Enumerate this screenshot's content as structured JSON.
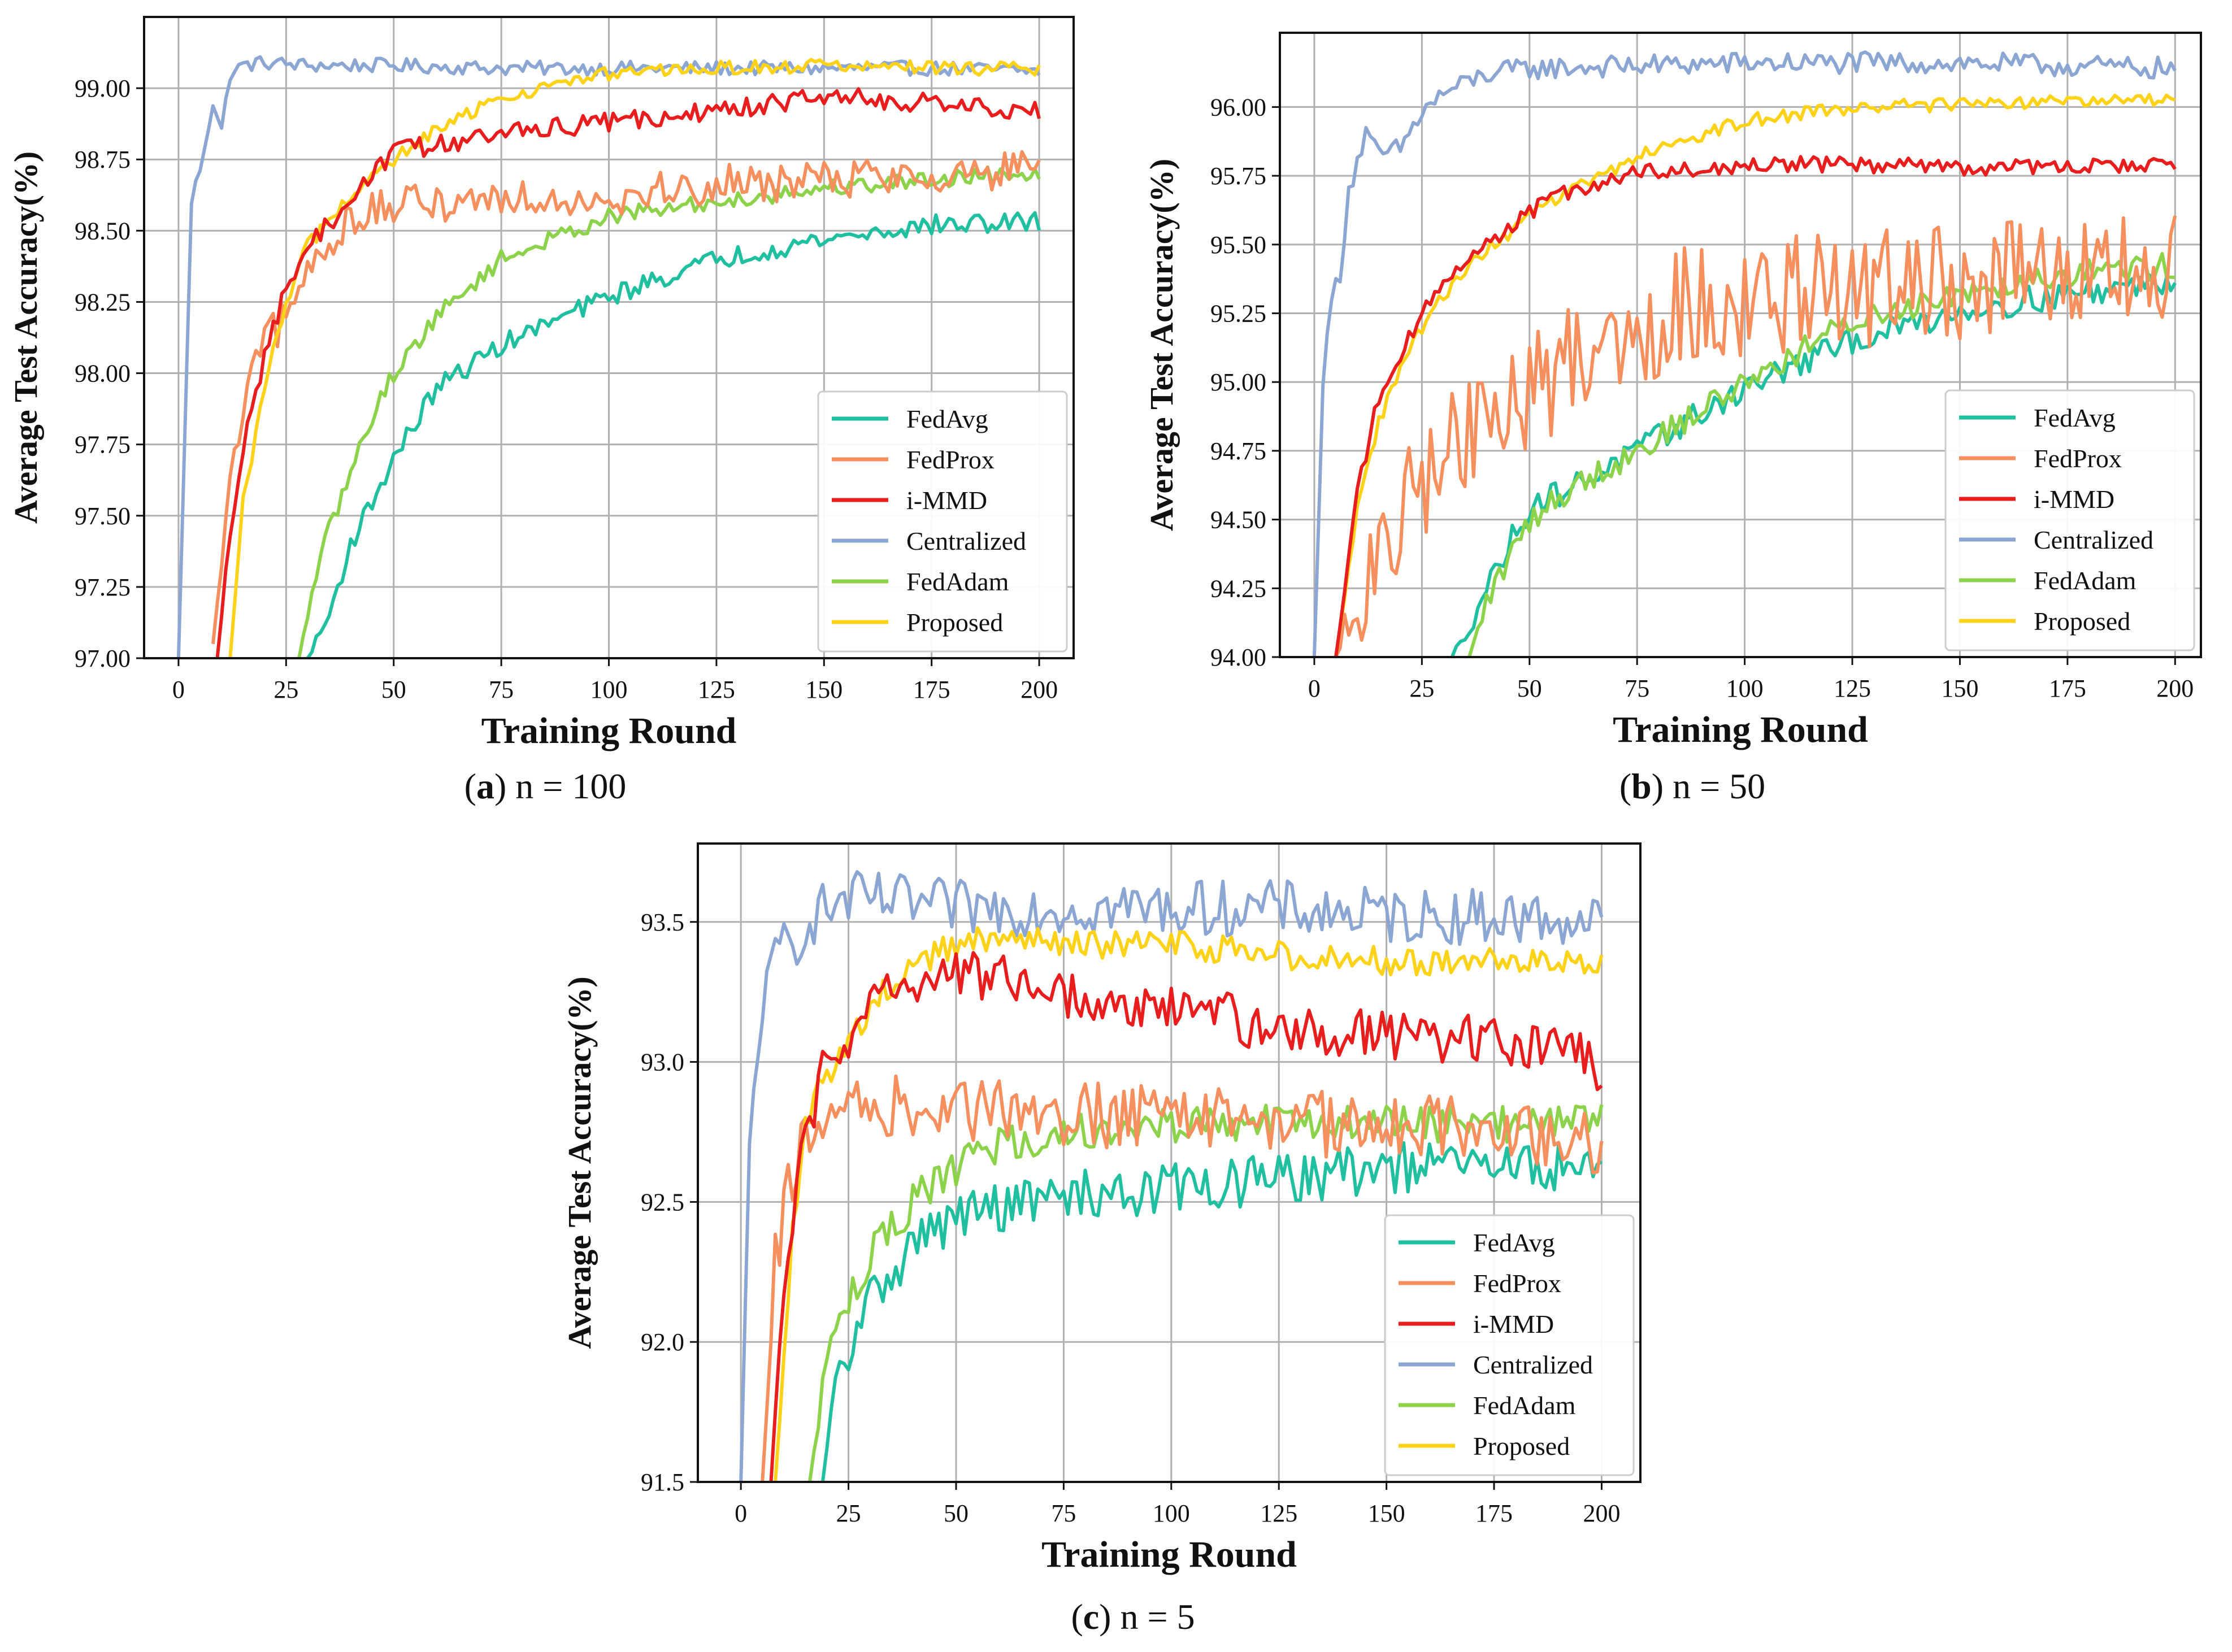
{
  "figure": {
    "panels": [
      {
        "label_letter": "a",
        "caption_rest": "n = 100"
      },
      {
        "label_letter": "b",
        "caption_rest": "n = 50"
      },
      {
        "label_letter": "c",
        "caption_rest": "n = 5"
      }
    ]
  },
  "colors": {
    "FedAvg": "#1fbf9f",
    "FedProx": "#f5905e",
    "i-MMD": "#e81d1d",
    "Centralized": "#8ca6d4",
    "FedAdam": "#8cd24a",
    "Proposed": "#ffd21a"
  },
  "chart_data": [
    {
      "type": "line",
      "id": "a",
      "title": "",
      "xlabel": "Training Round",
      "ylabel": "Average Test Accuracy(%)",
      "xlim": [
        -8,
        208
      ],
      "ylim": [
        97.0,
        99.25
      ],
      "xticks": [
        0,
        25,
        50,
        75,
        100,
        125,
        150,
        175,
        200
      ],
      "xtick_labels": [
        "0",
        "25",
        "50",
        "75",
        "100",
        "125",
        "150",
        "175",
        "200"
      ],
      "yticks": [
        97.0,
        97.25,
        97.5,
        97.75,
        98.0,
        98.25,
        98.5,
        98.75,
        99.0
      ],
      "ytick_labels": [
        "97.00",
        "97.25",
        "97.50",
        "97.75",
        "98.00",
        "98.25",
        "98.50",
        "98.75",
        "99.00"
      ],
      "grid": true,
      "legend": "lower-right",
      "series": [
        {
          "name": "FedAvg",
          "x": [
            30,
            35,
            40,
            50,
            60,
            75,
            100,
            125,
            150,
            175,
            200
          ],
          "y": [
            97.0,
            97.15,
            97.4,
            97.7,
            97.95,
            98.1,
            98.27,
            98.4,
            98.47,
            98.52,
            98.53
          ]
        },
        {
          "name": "FedProx",
          "x": [
            8,
            12,
            16,
            20,
            25,
            30,
            40,
            50,
            60,
            75,
            100,
            125,
            150,
            175,
            200
          ],
          "y": [
            97.05,
            97.6,
            97.95,
            98.1,
            98.2,
            98.35,
            98.55,
            98.58,
            98.6,
            98.62,
            98.62,
            98.66,
            98.68,
            98.7,
            98.71
          ]
        },
        {
          "name": "i-MMD",
          "x": [
            9,
            12,
            16,
            20,
            25,
            30,
            40,
            50,
            60,
            75,
            100,
            125,
            150,
            175,
            200
          ],
          "y": [
            97.0,
            97.45,
            97.85,
            98.05,
            98.3,
            98.45,
            98.6,
            98.78,
            98.8,
            98.84,
            98.88,
            98.92,
            98.97,
            98.95,
            98.92
          ]
        },
        {
          "name": "Centralized",
          "x": [
            0,
            3,
            5,
            8,
            10,
            12,
            15,
            20,
            30,
            50,
            75,
            100,
            125,
            150,
            175,
            200
          ],
          "y": [
            97.0,
            98.6,
            98.72,
            98.95,
            98.85,
            99.05,
            99.08,
            99.09,
            99.08,
            99.08,
            99.07,
            99.07,
            99.07,
            99.07,
            99.07,
            99.06
          ]
        },
        {
          "name": "FedAdam",
          "x": [
            28,
            32,
            35,
            40,
            45,
            50,
            60,
            75,
            100,
            125,
            150,
            175,
            200
          ],
          "y": [
            97.0,
            97.3,
            97.45,
            97.65,
            97.85,
            98.0,
            98.2,
            98.4,
            98.55,
            98.6,
            98.65,
            98.68,
            98.71
          ]
        },
        {
          "name": "Proposed",
          "x": [
            12,
            15,
            20,
            25,
            30,
            40,
            50,
            60,
            75,
            100,
            125,
            150,
            175,
            200
          ],
          "y": [
            97.0,
            97.55,
            97.95,
            98.25,
            98.45,
            98.62,
            98.75,
            98.85,
            98.97,
            99.05,
            99.07,
            99.08,
            99.07,
            99.07
          ]
        }
      ]
    },
    {
      "type": "line",
      "id": "b",
      "title": "",
      "xlabel": "Training Round",
      "ylabel": "Average Test Accuracy(%)",
      "xlim": [
        -8,
        206
      ],
      "ylim": [
        94.0,
        96.27
      ],
      "xticks": [
        0,
        25,
        50,
        75,
        100,
        125,
        150,
        175,
        200
      ],
      "xtick_labels": [
        "0",
        "25",
        "50",
        "75",
        "100",
        "125",
        "150",
        "175",
        "200"
      ],
      "yticks": [
        94.0,
        94.25,
        94.5,
        94.75,
        95.0,
        95.25,
        95.5,
        95.75,
        96.0
      ],
      "ytick_labels": [
        "94.00",
        "94.25",
        "94.50",
        "94.75",
        "95.00",
        "95.25",
        "95.50",
        "95.75",
        "96.00"
      ],
      "grid": true,
      "legend": "lower-right",
      "series": [
        {
          "name": "FedAvg",
          "x": [
            32,
            40,
            50,
            60,
            75,
            100,
            125,
            150,
            175,
            200
          ],
          "y": [
            94.0,
            94.25,
            94.55,
            94.62,
            94.75,
            94.98,
            95.15,
            95.26,
            95.32,
            95.37
          ]
        },
        {
          "name": "FedProx",
          "x": [
            5,
            10,
            15,
            20,
            25,
            30,
            40,
            50,
            60,
            75,
            90,
            100,
            125,
            150,
            175,
            200
          ],
          "y": [
            94.0,
            94.2,
            94.3,
            94.5,
            94.65,
            94.75,
            94.85,
            94.95,
            95.1,
            95.2,
            95.3,
            95.3,
            95.33,
            95.36,
            95.38,
            95.4
          ]
        },
        {
          "name": "i-MMD",
          "x": [
            5,
            10,
            15,
            20,
            25,
            30,
            40,
            50,
            60,
            75,
            100,
            125,
            150,
            175,
            200
          ],
          "y": [
            94.0,
            94.6,
            94.95,
            95.1,
            95.25,
            95.35,
            95.5,
            95.62,
            95.7,
            95.76,
            95.79,
            95.79,
            95.78,
            95.78,
            95.79
          ]
        },
        {
          "name": "Centralized",
          "x": [
            0,
            2,
            4,
            6,
            8,
            12,
            15,
            20,
            25,
            30,
            40,
            50,
            75,
            100,
            125,
            150,
            175,
            200
          ],
          "y": [
            94.0,
            95.0,
            95.3,
            95.4,
            95.7,
            95.9,
            95.82,
            95.85,
            95.98,
            96.05,
            96.12,
            96.14,
            96.15,
            96.16,
            96.16,
            96.16,
            96.15,
            96.14
          ]
        },
        {
          "name": "FedAdam",
          "x": [
            36,
            40,
            50,
            60,
            75,
            100,
            125,
            150,
            175,
            200
          ],
          "y": [
            94.0,
            94.2,
            94.5,
            94.62,
            94.75,
            95.0,
            95.22,
            95.33,
            95.4,
            95.42
          ]
        },
        {
          "name": "Proposed",
          "x": [
            5,
            10,
            15,
            20,
            25,
            30,
            40,
            50,
            60,
            75,
            100,
            125,
            150,
            175,
            200
          ],
          "y": [
            94.0,
            94.55,
            94.85,
            95.05,
            95.2,
            95.32,
            95.48,
            95.6,
            95.7,
            95.82,
            95.95,
            96.0,
            96.01,
            96.02,
            96.02
          ]
        }
      ]
    },
    {
      "type": "line",
      "id": "c",
      "title": "",
      "xlabel": "Training Round",
      "ylabel": "Average Test Accuracy(%)",
      "xlim": [
        -10,
        209
      ],
      "ylim": [
        91.5,
        93.78
      ],
      "xticks": [
        0,
        25,
        50,
        75,
        100,
        125,
        150,
        175,
        200
      ],
      "xtick_labels": [
        "0",
        "25",
        "50",
        "75",
        "100",
        "125",
        "150",
        "175",
        "200"
      ],
      "yticks": [
        91.5,
        92.0,
        92.5,
        93.0,
        93.5
      ],
      "ytick_labels": [
        "91.5",
        "92.0",
        "92.5",
        "93.0",
        "93.5"
      ],
      "grid": true,
      "legend": "lower-right",
      "series": [
        {
          "name": "FedAvg",
          "x": [
            19,
            22,
            25,
            30,
            40,
            50,
            60,
            75,
            100,
            125,
            150,
            175,
            200
          ],
          "y": [
            91.5,
            91.85,
            91.95,
            92.15,
            92.35,
            92.45,
            92.48,
            92.52,
            92.55,
            92.58,
            92.62,
            92.63,
            92.62
          ]
        },
        {
          "name": "FedProx",
          "x": [
            5,
            8,
            12,
            15,
            20,
            25,
            30,
            40,
            50,
            60,
            75,
            100,
            125,
            150,
            175,
            200
          ],
          "y": [
            91.5,
            92.3,
            92.6,
            92.7,
            92.8,
            92.85,
            92.85,
            92.83,
            92.82,
            92.82,
            92.82,
            92.8,
            92.78,
            92.78,
            92.78,
            92.7
          ]
        },
        {
          "name": "i-MMD",
          "x": [
            7,
            10,
            13,
            16,
            20,
            25,
            30,
            40,
            50,
            60,
            75,
            100,
            125,
            150,
            175,
            195,
            200
          ],
          "y": [
            91.5,
            92.2,
            92.55,
            92.8,
            93.0,
            93.1,
            93.2,
            93.3,
            93.32,
            93.3,
            93.25,
            93.2,
            93.12,
            93.1,
            93.07,
            93.03,
            92.95
          ]
        },
        {
          "name": "Centralized",
          "x": [
            0,
            2,
            4,
            6,
            8,
            10,
            12,
            15,
            20,
            25,
            30,
            50,
            75,
            100,
            125,
            150,
            175,
            200
          ],
          "y": [
            91.5,
            92.7,
            93.1,
            93.25,
            93.35,
            93.45,
            93.4,
            93.5,
            93.55,
            93.58,
            93.58,
            93.55,
            93.55,
            93.55,
            93.55,
            93.52,
            93.52,
            93.5
          ]
        },
        {
          "name": "FedAdam",
          "x": [
            16,
            20,
            25,
            30,
            35,
            40,
            50,
            60,
            75,
            100,
            125,
            150,
            175,
            200
          ],
          "y": [
            91.5,
            91.95,
            92.15,
            92.3,
            92.4,
            92.5,
            92.62,
            92.7,
            92.75,
            92.78,
            92.78,
            92.78,
            92.78,
            92.8
          ]
        },
        {
          "name": "Proposed",
          "x": [
            8,
            12,
            15,
            20,
            25,
            30,
            40,
            50,
            60,
            75,
            100,
            125,
            150,
            175,
            200
          ],
          "y": [
            91.5,
            92.4,
            92.8,
            92.95,
            93.05,
            93.2,
            93.35,
            93.42,
            93.45,
            93.42,
            93.42,
            93.38,
            93.36,
            93.36,
            93.35
          ]
        }
      ]
    }
  ]
}
